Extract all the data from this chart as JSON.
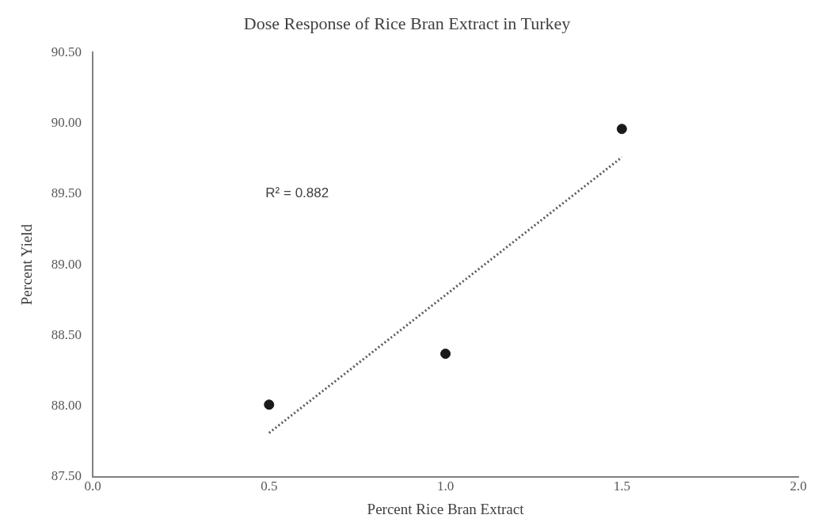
{
  "chart_data": {
    "type": "scatter",
    "title": "Dose Response of Rice Bran Extract in Turkey",
    "xlabel": "Percent Rice Bran Extract",
    "ylabel": "Percent Yield",
    "x": [
      0.5,
      1.0,
      1.5
    ],
    "series": [
      {
        "color": "#1a1a1a",
        "values": [
          88.01,
          88.37,
          89.96
        ],
        "marker": "circle"
      },
      {
        "type": "line",
        "color": "#595959",
        "x": [
          0.5,
          1.5
        ],
        "values": [
          87.81,
          89.76
        ],
        "line_style": "dotted",
        "marker": "none"
      }
    ],
    "xlim": [
      0,
      2
    ],
    "xticks": [
      {
        "value": 0,
        "label": "0.0"
      },
      {
        "value": 0.5,
        "label": "0.5"
      },
      {
        "value": 1,
        "label": "1.0"
      },
      {
        "value": 1.5,
        "label": "1.5"
      },
      {
        "value": 2,
        "label": "2.0"
      }
    ],
    "ylim": [
      87.5,
      90.5
    ],
    "yticks": [
      {
        "value": 87.5,
        "label": "87.50"
      },
      {
        "value": 88,
        "label": "88.00"
      },
      {
        "value": 88.5,
        "label": "88.50"
      },
      {
        "value": 89,
        "label": "89.00"
      },
      {
        "value": 89.5,
        "label": "89.50"
      },
      {
        "value": 90,
        "label": "90.00"
      },
      {
        "value": 90.5,
        "label": "90.50"
      }
    ],
    "annotations": [
      "R² = 0.882"
    ],
    "grid": false,
    "legend": false
  }
}
